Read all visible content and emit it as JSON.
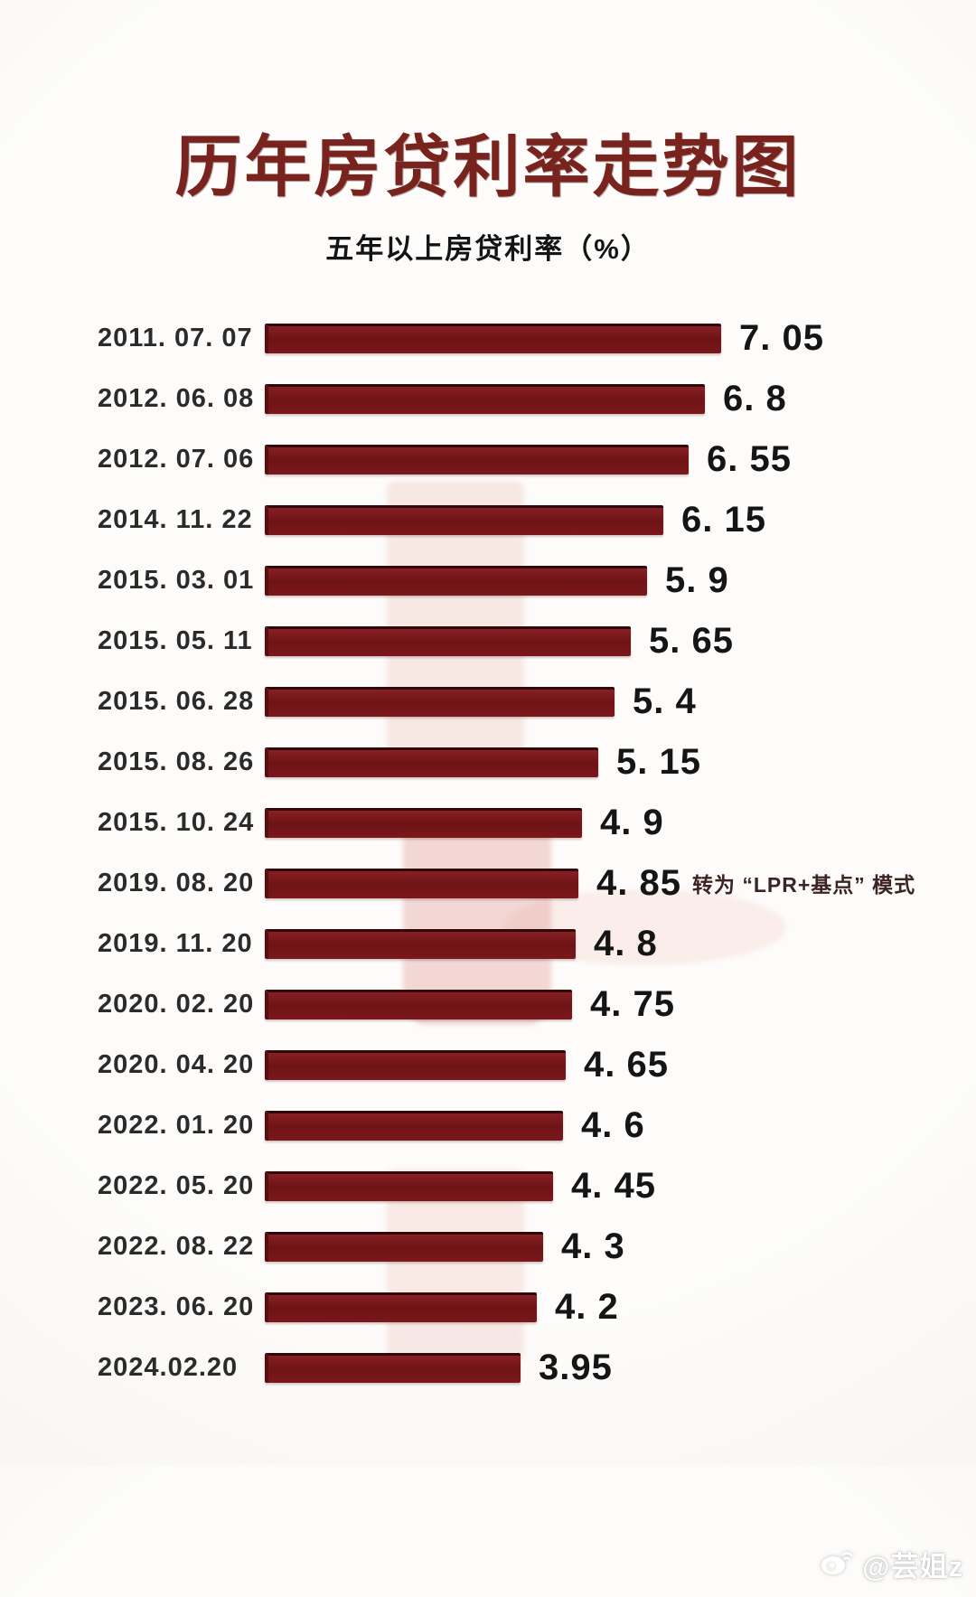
{
  "title": "历年房贷利率走势图",
  "subtitle": "五年以上房贷利率（%）",
  "colors": {
    "bar": "#76161a",
    "bar_edge": "#30080a",
    "title_text": "#78231d",
    "value_text": "#151515",
    "background": "#fcfbf8"
  },
  "watermark": {
    "credit_handle": "@芸姐z",
    "credit_icon": "weibo-logo-icon"
  },
  "chart_data": {
    "type": "bar",
    "orientation": "horizontal",
    "title": "历年房贷利率走势图",
    "subtitle": "五年以上房贷利率（%）",
    "value_axis_range": [
      0,
      7.05
    ],
    "grid": false,
    "legend": false,
    "categories": [
      "2011. 07. 07",
      "2012. 06. 08",
      "2012. 07. 06",
      "2014. 11. 22",
      "2015. 03. 01",
      "2015. 05. 11",
      "2015. 06. 28",
      "2015. 08. 26",
      "2015. 10. 24",
      "2019. 08. 20",
      "2019. 11. 20",
      "2020. 02. 20",
      "2020. 04. 20",
      "2022. 01. 20",
      "2022. 05. 20",
      "2022. 08. 22",
      "2023. 06. 20",
      "2024.02.20"
    ],
    "values": [
      7.05,
      6.8,
      6.55,
      6.15,
      5.9,
      5.65,
      5.4,
      5.15,
      4.9,
      4.85,
      4.8,
      4.75,
      4.65,
      4.6,
      4.45,
      4.3,
      4.2,
      3.95
    ],
    "value_labels": [
      "7. 05",
      "6. 8",
      "6. 55",
      "6. 15",
      "5. 9",
      "5. 65",
      "5. 4",
      "5. 15",
      "4. 9",
      "4. 85",
      "4. 8",
      "4. 75",
      "4. 65",
      "4. 6",
      "4. 45",
      "4. 3",
      "4. 2",
      "3.95"
    ],
    "annotations": [
      {
        "category": "2019. 08. 20",
        "text": "转为 “LPR+基点” 模式"
      }
    ]
  }
}
